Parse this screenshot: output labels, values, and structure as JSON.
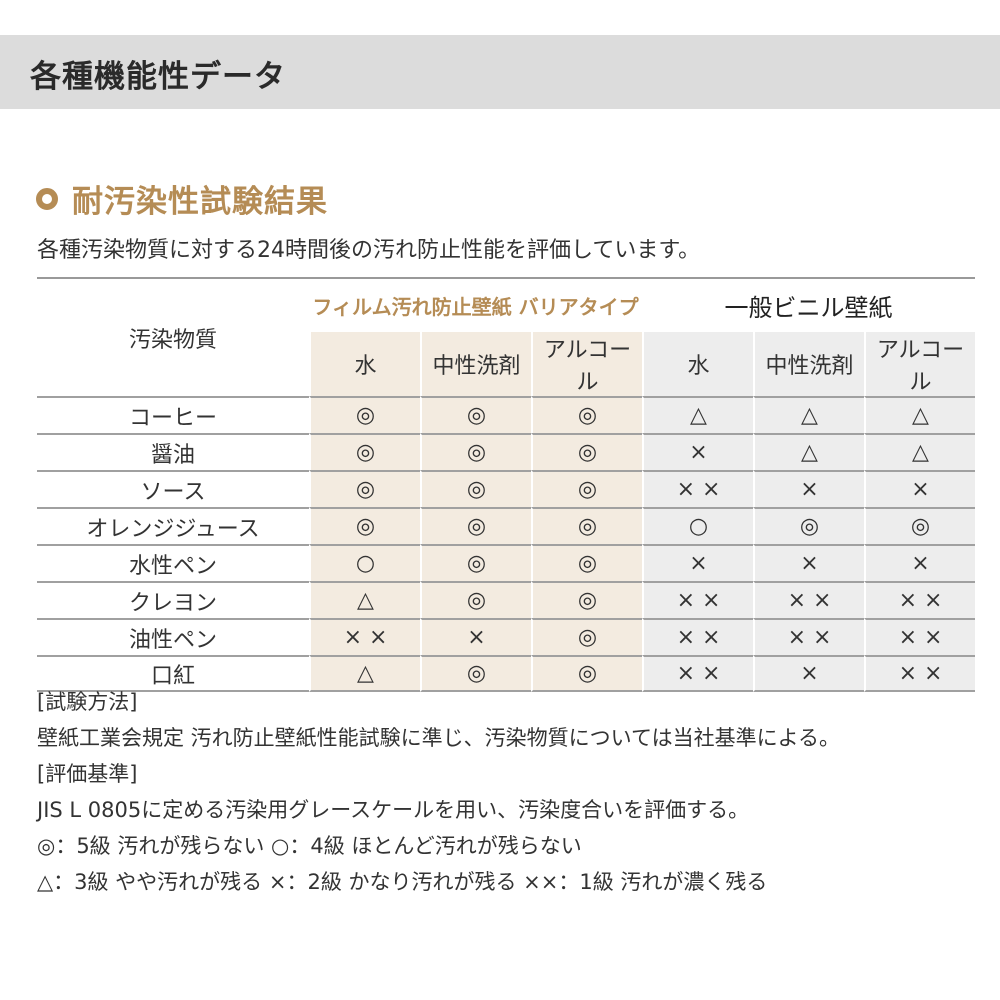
{
  "header": {
    "title": "各種機能性データ"
  },
  "section": {
    "title": "耐汚染性試験結果",
    "intro": "各種汚染物質に対する24時間後の汚れ防止性能を評価しています。"
  },
  "colors": {
    "accent": "#b58c55",
    "film_bg": "#f3ebe0",
    "vinyl_bg": "#ededed",
    "header_bg": "#dcdcdc"
  },
  "table": {
    "row_header": "汚染物質",
    "groups": [
      "フィルム汚れ防止壁紙 バリアタイプ",
      "一般ビニル壁紙"
    ],
    "subheaders": [
      "水",
      "中性洗剤",
      "アルコール",
      "水",
      "中性洗剤",
      "アルコール"
    ],
    "rows": [
      {
        "label": "コーヒー",
        "values": [
          "◎",
          "◎",
          "◎",
          "△",
          "△",
          "△"
        ]
      },
      {
        "label": "醤油",
        "values": [
          "◎",
          "◎",
          "◎",
          "×",
          "△",
          "△"
        ]
      },
      {
        "label": "ソース",
        "values": [
          "◎",
          "◎",
          "◎",
          "× ×",
          "×",
          "×"
        ]
      },
      {
        "label": "オレンジジュース",
        "values": [
          "◎",
          "◎",
          "◎",
          "○",
          "◎",
          "◎"
        ]
      },
      {
        "label": "水性ペン",
        "values": [
          "○",
          "◎",
          "◎",
          "×",
          "×",
          "×"
        ]
      },
      {
        "label": "クレヨン",
        "values": [
          "△",
          "◎",
          "◎",
          "× ×",
          "× ×",
          "× ×"
        ]
      },
      {
        "label": "油性ペン",
        "values": [
          "× ×",
          "×",
          "◎",
          "× ×",
          "× ×",
          "× ×"
        ]
      },
      {
        "label": "口紅",
        "values": [
          "△",
          "◎",
          "◎",
          "× ×",
          "×",
          "× ×"
        ]
      }
    ]
  },
  "notes": [
    "[試験方法]",
    "壁紙工業会規定 汚れ防止壁紙性能試験に準じ、汚染物質については当社基準による。",
    "[評価基準]",
    "JIS L 0805に定める汚染用グレースケールを用い、汚染度合いを評価する。",
    "◎：5級 汚れが残らない ○：4級 ほとんど汚れが残らない",
    "△：3級 やや汚れが残る ×：2級 かなり汚れが残る ××：1級 汚れが濃く残る"
  ]
}
